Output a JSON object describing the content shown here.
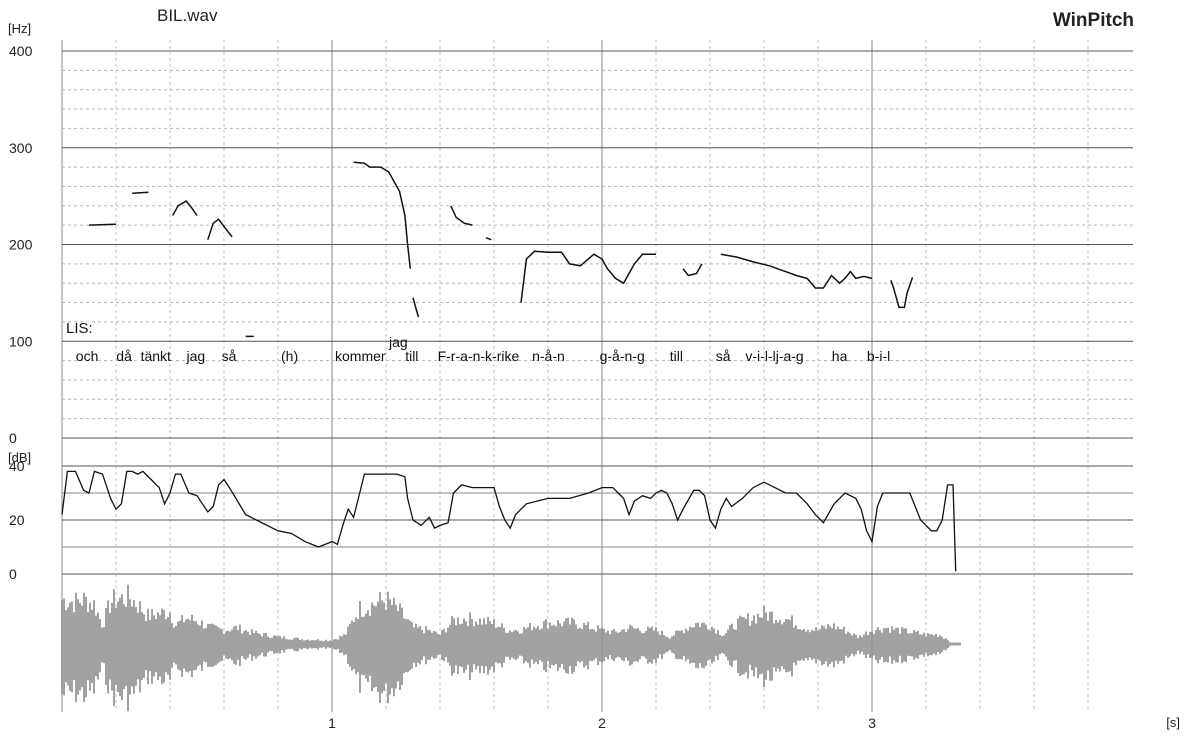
{
  "header": {
    "filename": "BIL.wav",
    "app_name": "WinPitch"
  },
  "chart_data": [
    {
      "type": "line",
      "panel": "pitch",
      "unit_label": "[Hz]",
      "ylim": [
        0,
        400
      ],
      "y_ticks": [
        "0",
        "100",
        "200",
        "300",
        "400"
      ],
      "grid": true,
      "speaker_label": "LIS:",
      "words": [
        {
          "t": "och",
          "x": 0.04
        },
        {
          "t": "då",
          "x": 0.19
        },
        {
          "t": "tänkt",
          "x": 0.28
        },
        {
          "t": "jag",
          "x": 0.45
        },
        {
          "t": "så",
          "x": 0.58
        },
        {
          "t": "(h)",
          "x": 0.8
        },
        {
          "t": "kommer",
          "x": 1.0
        },
        {
          "t": "jag",
          "x": 1.2
        },
        {
          "t": "till",
          "x": 1.26
        },
        {
          "t": "F-r-a-n-k-rike",
          "x": 1.38
        },
        {
          "t": "n-å-n",
          "x": 1.73
        },
        {
          "t": "g-å-n-g",
          "x": 1.98
        },
        {
          "t": "till",
          "x": 2.24
        },
        {
          "t": "så",
          "x": 2.41
        },
        {
          "t": "v-i-l-lj-a-g",
          "x": 2.52
        },
        {
          "t": "ha",
          "x": 2.84
        },
        {
          "t": "b-i-l",
          "x": 2.97
        }
      ],
      "series": [
        {
          "x": [
            0.1,
            0.2
          ],
          "y": [
            220,
            221
          ]
        },
        {
          "x": [
            0.26,
            0.32
          ],
          "y": [
            253,
            254
          ]
        },
        {
          "x": [
            0.41,
            0.43,
            0.46,
            0.48,
            0.5
          ],
          "y": [
            230,
            240,
            245,
            238,
            230
          ]
        },
        {
          "x": [
            0.54,
            0.56,
            0.58,
            0.61,
            0.63
          ],
          "y": [
            205,
            222,
            226,
            215,
            208
          ]
        },
        {
          "x": [
            0.68,
            0.71
          ],
          "y": [
            105,
            105
          ]
        },
        {
          "x": [
            1.08,
            1.12,
            1.14,
            1.18,
            1.21,
            1.23,
            1.25,
            1.27,
            1.28,
            1.29
          ],
          "y": [
            285,
            284,
            280,
            280,
            275,
            265,
            255,
            230,
            200,
            175
          ]
        },
        {
          "x": [
            1.3,
            1.32
          ],
          "y": [
            145,
            125
          ]
        },
        {
          "x": [
            1.44,
            1.46,
            1.49,
            1.52
          ],
          "y": [
            240,
            228,
            222,
            220
          ]
        },
        {
          "x": [
            1.57,
            1.59
          ],
          "y": [
            207,
            205
          ]
        },
        {
          "x": [
            1.7,
            1.72,
            1.75,
            1.8,
            1.85,
            1.88,
            1.92,
            1.97,
            2.0,
            2.02,
            2.05,
            2.08,
            2.1,
            2.12,
            2.15,
            2.2
          ],
          "y": [
            140,
            185,
            193,
            192,
            192,
            180,
            178,
            190,
            185,
            175,
            165,
            160,
            170,
            180,
            190,
            190
          ]
        },
        {
          "x": [
            2.3,
            2.32,
            2.35,
            2.37
          ],
          "y": [
            175,
            168,
            170,
            180
          ]
        },
        {
          "x": [
            2.44,
            2.5,
            2.56,
            2.62,
            2.68,
            2.72,
            2.76,
            2.79,
            2.82,
            2.85,
            2.88,
            2.9,
            2.92,
            2.94,
            2.97,
            3.0
          ],
          "y": [
            190,
            187,
            182,
            178,
            172,
            168,
            165,
            155,
            155,
            168,
            160,
            165,
            172,
            165,
            167,
            165
          ]
        },
        {
          "x": [
            3.07,
            3.08,
            3.1,
            3.12,
            3.13,
            3.15
          ],
          "y": [
            163,
            155,
            135,
            135,
            150,
            166
          ]
        }
      ]
    },
    {
      "type": "line",
      "panel": "intensity",
      "unit_label": "[dB]",
      "ylim": [
        0,
        40
      ],
      "y_ticks": [
        "0",
        "20",
        "40"
      ],
      "grid": true,
      "series": [
        {
          "x": [
            0.0,
            0.02,
            0.05,
            0.08,
            0.1,
            0.12,
            0.15,
            0.18,
            0.2,
            0.22,
            0.24,
            0.26,
            0.28,
            0.3,
            0.33,
            0.36,
            0.38,
            0.4,
            0.42,
            0.44,
            0.47,
            0.5,
            0.52,
            0.54,
            0.56,
            0.58,
            0.6,
            0.62,
            0.65,
            0.68,
            0.72,
            0.76,
            0.8,
            0.85,
            0.9,
            0.95,
            1.0,
            1.02,
            1.04,
            1.06,
            1.08,
            1.12,
            1.16,
            1.2,
            1.24,
            1.27,
            1.28,
            1.3,
            1.33,
            1.36,
            1.38,
            1.4,
            1.43,
            1.45,
            1.48,
            1.52,
            1.56,
            1.6,
            1.62,
            1.64,
            1.66,
            1.68,
            1.72,
            1.8,
            1.88,
            1.95,
            2.0,
            2.04,
            2.06,
            2.08,
            2.1,
            2.12,
            2.15,
            2.18,
            2.2,
            2.22,
            2.24,
            2.26,
            2.28,
            2.3,
            2.34,
            2.36,
            2.38,
            2.4,
            2.42,
            2.44,
            2.46,
            2.48,
            2.52,
            2.56,
            2.6,
            2.64,
            2.68,
            2.72,
            2.76,
            2.79,
            2.82,
            2.86,
            2.9,
            2.94,
            2.96,
            2.98,
            3.0,
            3.02,
            3.04,
            3.06,
            3.1,
            3.14,
            3.16,
            3.18,
            3.2,
            3.22,
            3.24,
            3.26,
            3.28,
            3.3,
            3.31
          ],
          "y": [
            22,
            38,
            38,
            31,
            30,
            38,
            37,
            28,
            24,
            26,
            38,
            38,
            37,
            38,
            35,
            32,
            26,
            30,
            37,
            37,
            30,
            29,
            26,
            23,
            25,
            33,
            35,
            32,
            27,
            22,
            20,
            18,
            16,
            15,
            12,
            10,
            12,
            11,
            18,
            24,
            21,
            37,
            37,
            37,
            37,
            36,
            28,
            20,
            18,
            21,
            17,
            18,
            19,
            30,
            33,
            32,
            32,
            32,
            25,
            20,
            17,
            22,
            26,
            28,
            28,
            30,
            32,
            32,
            30,
            28,
            22,
            27,
            29,
            28,
            30,
            31,
            30,
            26,
            20,
            24,
            31,
            31,
            29,
            20,
            17,
            24,
            28,
            25,
            28,
            32,
            34,
            32,
            30,
            30,
            26,
            22,
            19,
            26,
            30,
            28,
            24,
            16,
            12,
            25,
            30,
            30,
            30,
            30,
            25,
            20,
            18,
            16,
            16,
            20,
            33,
            33,
            1
          ]
        }
      ]
    },
    {
      "type": "waveform",
      "panel": "waveform",
      "x_ticks": [
        "1",
        "2",
        "3"
      ],
      "x_tick_values": [
        1,
        2,
        3
      ],
      "x_unit_label": "[s]",
      "xlim": [
        0,
        4.0
      ],
      "envelope": {
        "x": [
          0.0,
          0.05,
          0.08,
          0.12,
          0.15,
          0.18,
          0.2,
          0.25,
          0.28,
          0.32,
          0.36,
          0.4,
          0.42,
          0.46,
          0.5,
          0.55,
          0.6,
          0.65,
          0.7,
          0.8,
          0.9,
          1.0,
          1.05,
          1.1,
          1.15,
          1.2,
          1.25,
          1.3,
          1.35,
          1.4,
          1.45,
          1.5,
          1.55,
          1.6,
          1.65,
          1.7,
          1.75,
          1.8,
          1.9,
          2.0,
          2.05,
          2.1,
          2.15,
          2.2,
          2.25,
          2.3,
          2.35,
          2.4,
          2.45,
          2.5,
          2.55,
          2.6,
          2.65,
          2.7,
          2.75,
          2.8,
          2.85,
          2.9,
          2.95,
          3.0,
          3.05,
          3.1,
          3.15,
          3.2,
          3.25,
          3.28,
          3.3,
          3.33
        ],
        "amp": [
          0.95,
          0.9,
          0.95,
          0.85,
          0.4,
          0.9,
          0.95,
          1.0,
          0.85,
          0.6,
          0.65,
          0.7,
          0.4,
          0.55,
          0.5,
          0.35,
          0.3,
          0.35,
          0.25,
          0.15,
          0.1,
          0.08,
          0.2,
          0.75,
          0.85,
          0.95,
          0.7,
          0.35,
          0.3,
          0.2,
          0.5,
          0.55,
          0.5,
          0.45,
          0.3,
          0.3,
          0.4,
          0.45,
          0.45,
          0.3,
          0.25,
          0.35,
          0.3,
          0.3,
          0.15,
          0.3,
          0.45,
          0.4,
          0.2,
          0.45,
          0.55,
          0.65,
          0.6,
          0.5,
          0.35,
          0.3,
          0.4,
          0.3,
          0.15,
          0.3,
          0.35,
          0.3,
          0.25,
          0.2,
          0.2,
          0.1,
          0.0,
          0.0
        ]
      }
    }
  ]
}
